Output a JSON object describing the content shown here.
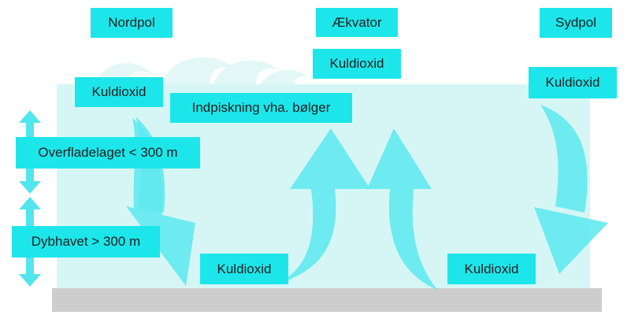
{
  "labels": {
    "north_pole": "Nordpol",
    "equator": "Ækvator",
    "south_pole": "Sydpol",
    "co2_equator": "Kuldioxid",
    "co2_north": "Kuldioxid",
    "co2_south": "Kuldioxid",
    "wave_mixing": "Indpiskning vha. bølger",
    "surface_layer": "Overfladelaget < 300 m",
    "deep_sea": "Dybhavet > 300 m",
    "co2_bottom_left": "Kuldioxid",
    "co2_bottom_right": "Kuldioxid"
  },
  "colors": {
    "label_bg": "#1de6ea",
    "water": "#d6f6f6",
    "arrow": "#5ee9ef",
    "seabed": "#cdcdcd",
    "waves": "#e3f7f7",
    "side_arrows": "#52e5ec"
  }
}
